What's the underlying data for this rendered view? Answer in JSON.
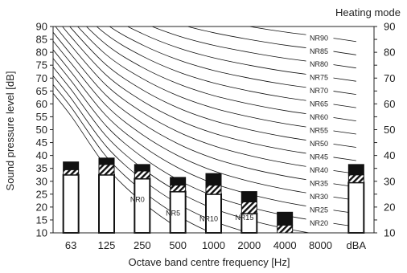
{
  "chart_data": {
    "type": "bar",
    "title": "Heating mode",
    "xlabel": "Octave band centre frequency [Hz]",
    "ylabel": "Sound pressure level [dB]",
    "ylim": [
      10,
      90
    ],
    "yticks": [
      10,
      15,
      20,
      25,
      30,
      35,
      40,
      45,
      50,
      55,
      60,
      65,
      70,
      75,
      80,
      85,
      90
    ],
    "grid": false,
    "categories": [
      "63",
      "125",
      "250",
      "500",
      "1000",
      "2000",
      "4000",
      "8000",
      "dBA"
    ],
    "series": [
      {
        "name": "",
        "values": [
          32.5,
          32.5,
          31,
          26,
          25,
          17.5,
          10,
          10,
          29.5
        ]
      },
      {
        "name": "",
        "values": [
          34.5,
          36.5,
          34,
          28.5,
          28.5,
          22,
          13,
          10,
          32.5
        ]
      },
      {
        "name": "",
        "values": [
          37.5,
          39,
          36.5,
          31.5,
          33,
          26,
          18,
          10,
          36.5
        ]
      }
    ],
    "nr_curves": {
      "labels": [
        "NR0",
        "NR5",
        "NR10",
        "NR15",
        "NR20",
        "NR25",
        "NR30",
        "NR35",
        "NR40",
        "NR45",
        "NR50",
        "NR55",
        "NR60",
        "NR65",
        "NR70",
        "NR75",
        "NR80",
        "NR85",
        "NR90"
      ],
      "levels": [
        0,
        5,
        10,
        15,
        20,
        25,
        30,
        35,
        40,
        45,
        50,
        55,
        60,
        65,
        70,
        75,
        80,
        85,
        90
      ],
      "label_positions": [
        "250",
        "500",
        "1000",
        "2000",
        "8000",
        "8000",
        "8000",
        "8000",
        "8000",
        "8000",
        "8000",
        "8000",
        "8000",
        "8000",
        "8000",
        "8000",
        "8000",
        "8000",
        "8000"
      ]
    }
  }
}
